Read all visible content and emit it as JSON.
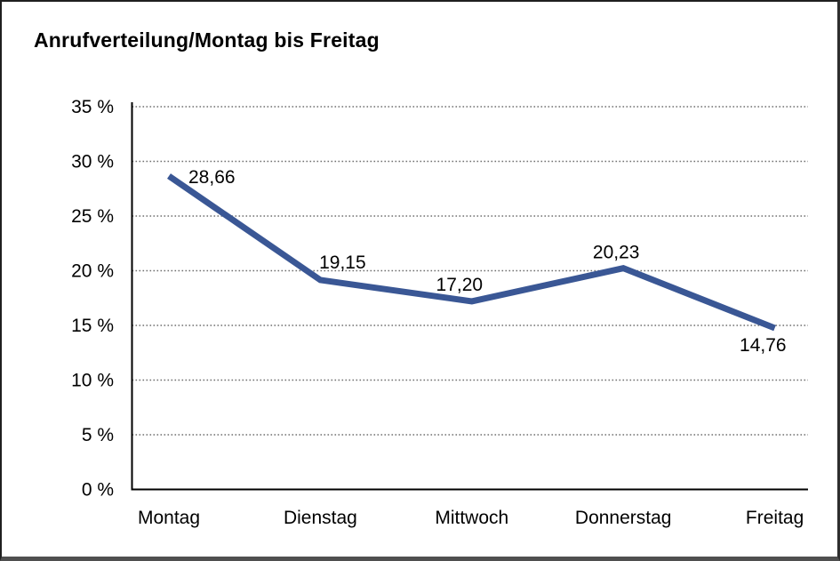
{
  "title": "Anrufverteilung/Montag bis Freitag",
  "chart_data": {
    "type": "line",
    "title": "Anrufverteilung/Montag bis Freitag",
    "categories": [
      "Montag",
      "Dienstag",
      "Mittwoch",
      "Donnerstag",
      "Freitag"
    ],
    "values": [
      28.66,
      19.15,
      17.2,
      20.23,
      14.76
    ],
    "value_labels": [
      "28,66",
      "19,15",
      "17,20",
      "20,23",
      "14,76"
    ],
    "xlabel": "",
    "ylabel": "",
    "ylim": [
      0,
      35
    ],
    "ytick_step": 5,
    "yticks": [
      "0 %",
      "5 %",
      "10 %",
      "15 %",
      "20 %",
      "25 %",
      "30 %",
      "35 %"
    ],
    "grid": "horizontal-dotted",
    "legend": "none",
    "line_color": "#3A5795",
    "axis_color": "#000000",
    "text_color": "#000000",
    "grid_color": "#6F6F6F"
  }
}
